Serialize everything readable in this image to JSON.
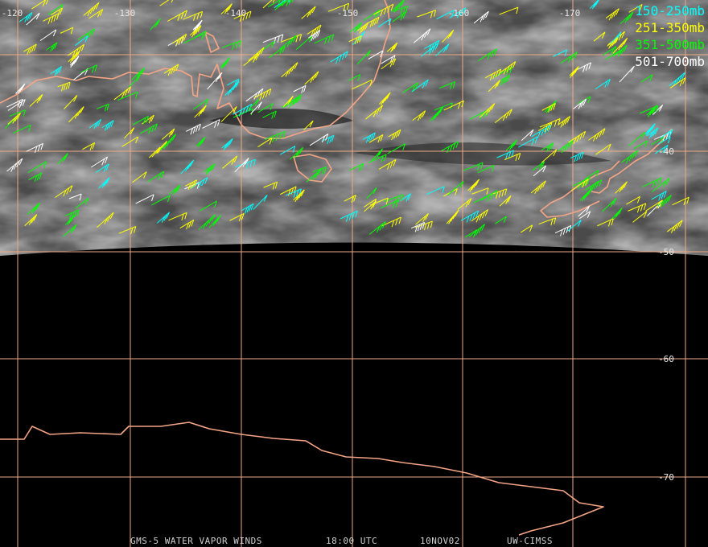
{
  "map": {
    "longitude_labels": [
      "-120",
      "-130",
      "-140",
      "-150",
      "-160",
      "-170"
    ],
    "latitude_labels": [
      "-40",
      "-50",
      "-60",
      "-70"
    ],
    "legend": [
      {
        "label": "150-250mb",
        "color": "#00ffff"
      },
      {
        "label": "251-350mb",
        "color": "#ffff00"
      },
      {
        "label": "351-500mb",
        "color": "#00ff00"
      },
      {
        "label": "501-700mb",
        "color": "#ffffff"
      }
    ],
    "footer": [
      "GMS-5 WATER VAPOR WINDS",
      "18:00 UTC",
      "10NOV02",
      "UW-CIMSS"
    ]
  }
}
